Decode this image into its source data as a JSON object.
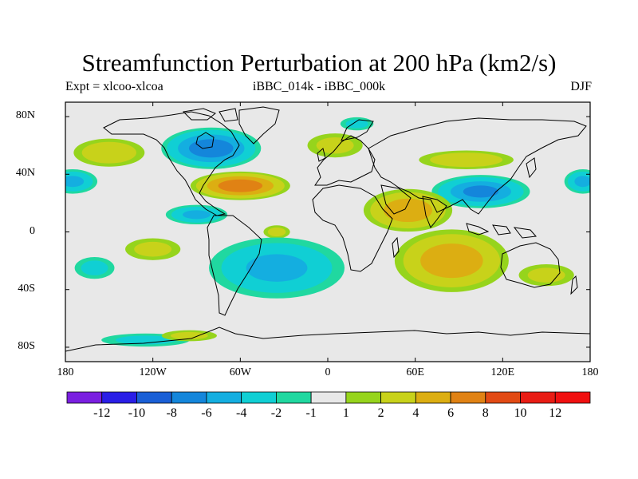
{
  "header": {
    "title": "Streamfunction Perturbation at 200 hPa (km2/s)",
    "left": "Expt = xlcoo-xlcoa",
    "center": "iBBC_014k - iBBC_000k",
    "right": "DJF"
  },
  "chart_data": {
    "type": "heatmap",
    "title": "Streamfunction Perturbation at 200 hPa (km2/s)",
    "subtitle_left": "Expt = xlcoo-xlcoa",
    "subtitle_center": "iBBC_014k - iBBC_000k",
    "subtitle_right": "DJF",
    "projection": "cylindrical equidistant, global, with coastlines",
    "xlim": [
      -180,
      180
    ],
    "ylim": [
      -90,
      90
    ],
    "x_ticks": [
      -180,
      -120,
      -60,
      0,
      60,
      120,
      180
    ],
    "x_tick_labels": [
      "180",
      "120W",
      "60W",
      "0",
      "60E",
      "120E",
      "180"
    ],
    "y_ticks": [
      80,
      40,
      0,
      -40,
      -80
    ],
    "y_tick_labels": [
      "80N",
      "40N",
      "0",
      "40S",
      "80S"
    ],
    "colorbar": {
      "levels": [
        -12,
        -10,
        -8,
        -6,
        -4,
        -2,
        -1,
        1,
        2,
        4,
        6,
        8,
        10,
        12
      ],
      "labels": [
        "-12",
        "-10",
        "-8",
        "-6",
        "-4",
        "-2",
        "-1",
        "1",
        "2",
        "4",
        "6",
        "8",
        "10",
        "12"
      ],
      "colors": [
        "#7a1fe0",
        "#2a1ee6",
        "#1a5fd6",
        "#1486db",
        "#14aee0",
        "#10cfd4",
        "#20d8a0",
        "#e8e8e8",
        "#96d41c",
        "#c8d21a",
        "#dcae12",
        "#e08214",
        "#e24a14",
        "#e81c14",
        "#f01010"
      ]
    },
    "anomalies": [
      {
        "lon": -150,
        "lat": 55,
        "value": 3,
        "extent": [
          30,
          12
        ]
      },
      {
        "lon": -80,
        "lat": 58,
        "value": -7,
        "extent": [
          38,
          16
        ]
      },
      {
        "lon": -60,
        "lat": 32,
        "value": 7,
        "extent": [
          38,
          11
        ]
      },
      {
        "lon": -90,
        "lat": 12,
        "value": -4,
        "extent": [
          25,
          8
        ]
      },
      {
        "lon": -175,
        "lat": 35,
        "value": -4,
        "extent": [
          20,
          10
        ]
      },
      {
        "lon": 20,
        "lat": 75,
        "value": -2,
        "extent": [
          15,
          6
        ]
      },
      {
        "lon": 95,
        "lat": 50,
        "value": 3,
        "extent": [
          40,
          8
        ]
      },
      {
        "lon": 105,
        "lat": 28,
        "value": -6,
        "extent": [
          38,
          13
        ]
      },
      {
        "lon": 175,
        "lat": 35,
        "value": -4,
        "extent": [
          15,
          10
        ]
      },
      {
        "lon": 55,
        "lat": 15,
        "value": 5,
        "extent": [
          35,
          17
        ]
      },
      {
        "lon": 5,
        "lat": 60,
        "value": 2,
        "extent": [
          25,
          11
        ]
      },
      {
        "lon": -35,
        "lat": 0,
        "value": 2,
        "extent": [
          12,
          6
        ]
      },
      {
        "lon": 85,
        "lat": -20,
        "value": 5,
        "extent": [
          45,
          25
        ]
      },
      {
        "lon": -35,
        "lat": -25,
        "value": -4,
        "extent": [
          55,
          25
        ]
      },
      {
        "lon": -120,
        "lat": -12,
        "value": 2,
        "extent": [
          25,
          10
        ]
      },
      {
        "lon": -160,
        "lat": -25,
        "value": -2,
        "extent": [
          18,
          10
        ]
      },
      {
        "lon": 150,
        "lat": -30,
        "value": 2,
        "extent": [
          25,
          10
        ]
      },
      {
        "lon": -125,
        "lat": -75,
        "value": -2,
        "extent": [
          40,
          6
        ]
      },
      {
        "lon": -95,
        "lat": -72,
        "value": 2,
        "extent": [
          25,
          5
        ]
      }
    ]
  }
}
